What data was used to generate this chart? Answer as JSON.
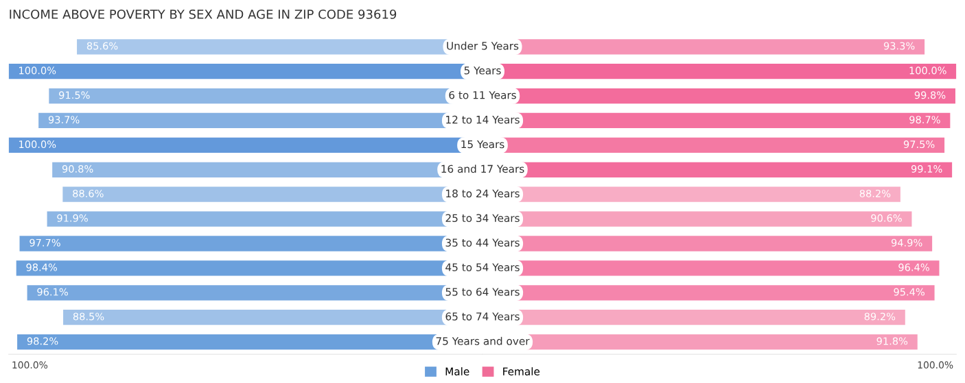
{
  "chart_data": [
    {
      "type": "bar",
      "orientation": "horizontal",
      "title": "INCOME ABOVE POVERTY BY SEX AND AGE IN ZIP CODE 93619",
      "categories": [
        "Under 5 Years",
        "5 Years",
        "6 to 11 Years",
        "12 to 14 Years",
        "15 Years",
        "16 and 17 Years",
        "18 to 24 Years",
        "25 to 34 Years",
        "35 to 44 Years",
        "45 to 54 Years",
        "55 to 64 Years",
        "65 to 74 Years",
        "75 Years and over"
      ],
      "annotations": [
        "100.0%"
      ],
      "legend": "bottom",
      "series": [
        {
          "name": "Male",
          "color": "#6a9fdc",
          "values": [
            85.6,
            100.0,
            91.5,
            93.7,
            100.0,
            90.8,
            88.6,
            91.9,
            97.7,
            98.4,
            96.1,
            88.5,
            98.2
          ],
          "value_labels": [
            "85.6%",
            "100.0%",
            "91.5%",
            "93.7%",
            "100.0%",
            "90.8%",
            "88.6%",
            "91.9%",
            "97.7%",
            "98.4%",
            "96.1%",
            "88.5%",
            "98.2%"
          ],
          "colors": [
            "#a8c7eb",
            "#6399db",
            "#8db6e4",
            "#84b0e2",
            "#6399db",
            "#92b9e5",
            "#9fc1e8",
            "#8db6e4",
            "#70a3dd",
            "#6ba0dc",
            "#78a8df",
            "#9fc1e8",
            "#6ba0dc"
          ]
        }
      ]
    },
    {
      "type": "bar",
      "orientation": "horizontal",
      "categories": [
        null,
        null,
        null,
        null,
        null,
        null,
        null,
        null,
        null,
        null,
        null,
        null,
        null
      ],
      "annotations": [
        "100.0%"
      ],
      "legend": "bottom",
      "series": [
        {
          "name": "Female",
          "color": "#f06d98",
          "values": [
            93.3,
            100.0,
            99.8,
            98.7,
            97.5,
            99.1,
            88.2,
            90.6,
            94.9,
            96.4,
            95.4,
            89.2,
            91.8
          ],
          "value_labels": [
            "93.3%",
            "100.0%",
            "99.8%",
            "98.7%",
            "97.5%",
            "99.1%",
            "88.2%",
            "90.6%",
            "94.9%",
            "96.4%",
            "95.4%",
            "89.2%",
            "91.8%"
          ],
          "colors": [
            "#f693b5",
            "#f2679a",
            "#f36c9c",
            "#f4719f",
            "#f479a3",
            "#f36c9c",
            "#f8adc5",
            "#f7a2bd",
            "#f589ae",
            "#f57fa8",
            "#f585ac",
            "#f7a8c1",
            "#f69cba"
          ]
        }
      ]
    }
  ]
}
